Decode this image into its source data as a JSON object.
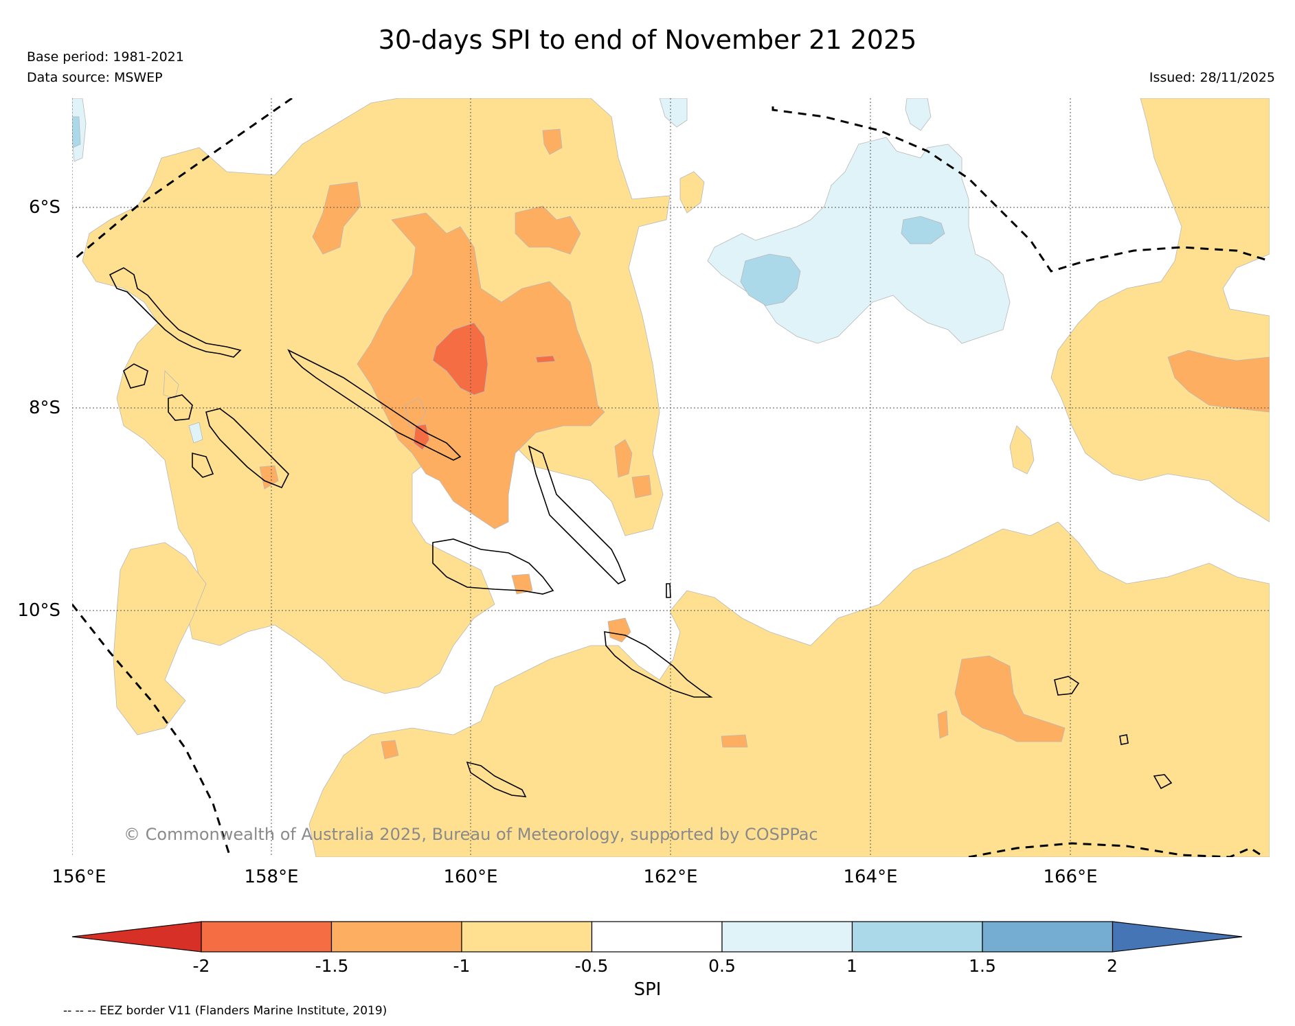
{
  "title": "30-days SPI to end of November 21 2025",
  "meta": {
    "base_period": "Base period: 1981-2021",
    "data_source": "Data source: MSWEP",
    "issued": "Issued: 28/11/2025"
  },
  "axes": {
    "lat_labels": [
      "6°S",
      "8°S",
      "10°S"
    ],
    "lon_labels": [
      "156°E",
      "158°E",
      "160°E",
      "162°E",
      "164°E",
      "166°E"
    ]
  },
  "credit": "© Commonwealth of Australia 2025, Bureau of Meteorology, supported by COSPPac",
  "colorbar": {
    "label": "SPI",
    "tick_labels": [
      "-2",
      "-1.5",
      "-1",
      "-0.5",
      "0.5",
      "1",
      "1.5",
      "2"
    ],
    "bins": [
      {
        "range": "<-2",
        "color": "#d73027"
      },
      {
        "range": "-2 to -1.5",
        "color": "#f46d43"
      },
      {
        "range": "-1.5 to -1",
        "color": "#fdae61"
      },
      {
        "range": "-1 to -0.5",
        "color": "#fee090"
      },
      {
        "range": "-0.5 to 0.5",
        "color": "#ffffff"
      },
      {
        "range": "0.5 to 1",
        "color": "#e0f3f8"
      },
      {
        "range": "1 to 1.5",
        "color": "#abd9e9"
      },
      {
        "range": "1.5 to 2",
        "color": "#74add1"
      },
      {
        "range": ">2",
        "color": "#4575b4"
      }
    ]
  },
  "footnote": "-- -- -- EEZ border V11 (Flanders Marine Institute, 2019)"
}
